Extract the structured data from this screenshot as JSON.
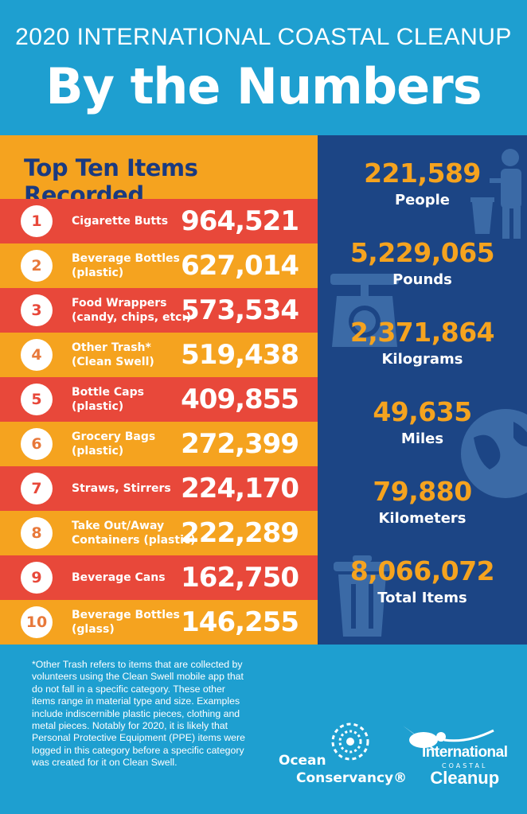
{
  "header": {
    "subtitle": "2020 INTERNATIONAL COASTAL CLEANUP",
    "title": "By the Numbers"
  },
  "top_ten": {
    "title": "Top Ten Items Recorded",
    "items": [
      {
        "rank": "1",
        "name": "Cigarette Butts",
        "value": "964,521"
      },
      {
        "rank": "2",
        "name": "Beverage Bottles\n(plastic)",
        "value": "627,014"
      },
      {
        "rank": "3",
        "name": "Food Wrappers\n(candy, chips, etc.)",
        "value": "573,534"
      },
      {
        "rank": "4",
        "name": "Other Trash*\n(Clean Swell)",
        "value": "519,438"
      },
      {
        "rank": "5",
        "name": "Bottle Caps\n(plastic)",
        "value": "409,855"
      },
      {
        "rank": "6",
        "name": "Grocery Bags\n(plastic)",
        "value": "272,399"
      },
      {
        "rank": "7",
        "name": "Straws, Stirrers",
        "value": "224,170"
      },
      {
        "rank": "8",
        "name": "Take Out/Away\nContainers (plastic)",
        "value": "222,289"
      },
      {
        "rank": "9",
        "name": "Beverage Cans",
        "value": "162,750"
      },
      {
        "rank": "10",
        "name": "Beverage Bottles\n(glass)",
        "value": "146,255"
      }
    ]
  },
  "stats": [
    {
      "value": "221,589",
      "label": "People"
    },
    {
      "value": "5,229,065",
      "label": "Pounds"
    },
    {
      "value": "2,371,864",
      "label": "Kilograms"
    },
    {
      "value": "49,635",
      "label": "Miles"
    },
    {
      "value": "79,880",
      "label": "Kilometers"
    },
    {
      "value": "8,066,072",
      "label": "Total Items"
    }
  ],
  "footnote": "*Other Trash refers to items that are collected by volunteers using the Clean Swell mobile app that do not fall in a specific category. These other items range in material type and size. Examples include indiscernible plastic pieces, clothing and metal pieces. Notably for 2020, it is likely that Personal Protective Equipment (PPE) items were logged in this category before a specific category was created for it on Clean Swell.",
  "logos": {
    "ocean_conservancy_line1": "Ocean",
    "ocean_conservancy_line2": "Conservancy®",
    "icc_line1": "International",
    "icc_line2": "COASTAL",
    "icc_line3": "Cleanup"
  },
  "colors": {
    "background": "#1e9fd0",
    "red": "#e8483a",
    "orange": "#f5a31f",
    "navy": "#1c4585",
    "title_blue": "#1a3a80"
  }
}
